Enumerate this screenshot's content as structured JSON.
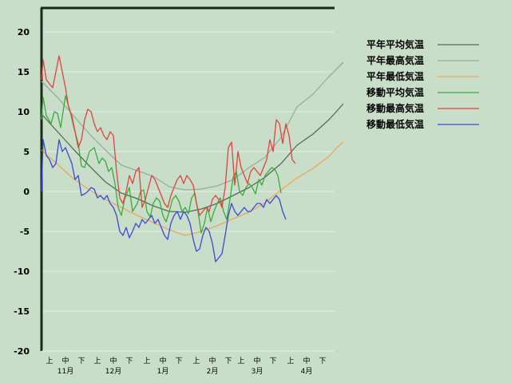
{
  "chart_data": {
    "type": "line",
    "title": "",
    "xlabel": "",
    "ylabel": "",
    "ylim": [
      -20,
      23
    ],
    "yticks": [
      20,
      15,
      10,
      5,
      0,
      -5,
      -10,
      -15,
      -20
    ],
    "x_sub_ticks": [
      "上",
      "中",
      "下"
    ],
    "months": [
      "11月",
      "12月",
      "1月",
      "2月",
      "3月",
      "4月"
    ],
    "grid": true,
    "legend_position": "top-right",
    "x_unit": "day index from 11月上旬 start (0 = Nov 1)",
    "series": [
      {
        "name": "平年平均気温",
        "color": "#556b55",
        "points": [
          [
            0,
            9.7
          ],
          [
            10,
            7.5
          ],
          [
            20,
            5.3
          ],
          [
            30,
            3.2
          ],
          [
            40,
            1.2
          ],
          [
            50,
            -0.2
          ],
          [
            60,
            -0.9
          ],
          [
            70,
            -1.8
          ],
          [
            80,
            -2.5
          ],
          [
            90,
            -2.6
          ],
          [
            100,
            -2.2
          ],
          [
            110,
            -1.5
          ],
          [
            120,
            -0.5
          ],
          [
            130,
            0.5
          ],
          [
            140,
            1.8
          ],
          [
            150,
            3.5
          ],
          [
            160,
            5.8
          ],
          [
            170,
            7.2
          ],
          [
            180,
            9.0
          ],
          [
            185,
            10.1
          ],
          [
            189,
            11.0
          ]
        ]
      },
      {
        "name": "平年最高気温",
        "color": "#98ac98",
        "points": [
          [
            0,
            13.8
          ],
          [
            10,
            11.8
          ],
          [
            20,
            9.5
          ],
          [
            30,
            7.2
          ],
          [
            40,
            5.2
          ],
          [
            50,
            3.3
          ],
          [
            60,
            2.6
          ],
          [
            70,
            1.9
          ],
          [
            80,
            0.6
          ],
          [
            90,
            0.2
          ],
          [
            100,
            0.3
          ],
          [
            110,
            0.7
          ],
          [
            120,
            1.5
          ],
          [
            130,
            3.0
          ],
          [
            140,
            4.3
          ],
          [
            150,
            6.8
          ],
          [
            160,
            10.6
          ],
          [
            170,
            12.2
          ],
          [
            180,
            14.4
          ],
          [
            185,
            15.4
          ],
          [
            189,
            16.2
          ]
        ]
      },
      {
        "name": "平年最低気温",
        "color": "#e8a858",
        "points": [
          [
            0,
            5.2
          ],
          [
            10,
            3.4
          ],
          [
            20,
            1.6
          ],
          [
            30,
            0.2
          ],
          [
            40,
            -1.0
          ],
          [
            50,
            -2.0
          ],
          [
            60,
            -3.0
          ],
          [
            70,
            -3.9
          ],
          [
            80,
            -4.8
          ],
          [
            90,
            -5.5
          ],
          [
            100,
            -5.0
          ],
          [
            110,
            -4.3
          ],
          [
            120,
            -3.4
          ],
          [
            130,
            -2.6
          ],
          [
            140,
            -1.4
          ],
          [
            150,
            0.2
          ],
          [
            160,
            1.7
          ],
          [
            170,
            2.9
          ],
          [
            180,
            4.4
          ],
          [
            185,
            5.5
          ],
          [
            189,
            6.2
          ]
        ]
      },
      {
        "name": "移動平均気温",
        "color": "#3cab3c",
        "points": [
          [
            0,
            9.0
          ],
          [
            1,
            11.8
          ],
          [
            3,
            9.5
          ],
          [
            6,
            8.5
          ],
          [
            8,
            10.0
          ],
          [
            10,
            9.8
          ],
          [
            12,
            8.0
          ],
          [
            15,
            12.0
          ],
          [
            18,
            10.0
          ],
          [
            20,
            8.2
          ],
          [
            23,
            6.0
          ],
          [
            25,
            3.2
          ],
          [
            27,
            3.0
          ],
          [
            30,
            5.0
          ],
          [
            33,
            5.5
          ],
          [
            36,
            3.5
          ],
          [
            38,
            4.2
          ],
          [
            40,
            3.8
          ],
          [
            42,
            2.5
          ],
          [
            44,
            3.0
          ],
          [
            46,
            1.0
          ],
          [
            48,
            -2.0
          ],
          [
            50,
            -3.0
          ],
          [
            52,
            -1.0
          ],
          [
            55,
            0.5
          ],
          [
            57,
            -2.5
          ],
          [
            60,
            -1.5
          ],
          [
            62,
            0.0
          ],
          [
            64,
            0.2
          ],
          [
            66,
            -2.5
          ],
          [
            68,
            -3.2
          ],
          [
            70,
            -1.5
          ],
          [
            72,
            -0.8
          ],
          [
            74,
            -1.2
          ],
          [
            76,
            -3.0
          ],
          [
            78,
            -3.8
          ],
          [
            80,
            -2.5
          ],
          [
            82,
            -1.0
          ],
          [
            84,
            -0.5
          ],
          [
            86,
            -1.2
          ],
          [
            88,
            -2.5
          ],
          [
            90,
            -2.0
          ],
          [
            92,
            -2.8
          ],
          [
            94,
            -0.8
          ],
          [
            96,
            -0.2
          ],
          [
            98,
            -2.5
          ],
          [
            100,
            -5.2
          ],
          [
            102,
            -4.0
          ],
          [
            104,
            -2.0
          ],
          [
            106,
            -3.8
          ],
          [
            108,
            -2.5
          ],
          [
            110,
            -1.5
          ],
          [
            112,
            -0.8
          ],
          [
            114,
            -2.5
          ],
          [
            116,
            -3.5
          ],
          [
            118,
            -1.0
          ],
          [
            120,
            1.8
          ],
          [
            122,
            2.5
          ],
          [
            124,
            0.0
          ],
          [
            126,
            -0.5
          ],
          [
            128,
            0.5
          ],
          [
            130,
            1.0
          ],
          [
            132,
            0.5
          ],
          [
            134,
            -0.3
          ],
          [
            136,
            1.5
          ],
          [
            138,
            0.8
          ],
          [
            140,
            2.0
          ],
          [
            142,
            2.5
          ],
          [
            144,
            3.0
          ],
          [
            146,
            2.8
          ],
          [
            148,
            2.0
          ],
          [
            150,
            -0.2
          ]
        ]
      },
      {
        "name": "移動最高気温",
        "color": "#e84040",
        "points": [
          [
            0,
            14.0
          ],
          [
            1,
            16.5
          ],
          [
            3,
            14.0
          ],
          [
            5,
            13.5
          ],
          [
            7,
            13.0
          ],
          [
            9,
            15.0
          ],
          [
            11,
            17.0
          ],
          [
            13,
            15.0
          ],
          [
            15,
            13.0
          ],
          [
            17,
            10.5
          ],
          [
            19,
            9.5
          ],
          [
            21,
            7.5
          ],
          [
            23,
            5.5
          ],
          [
            25,
            6.5
          ],
          [
            27,
            9.0
          ],
          [
            29,
            10.3
          ],
          [
            31,
            10.0
          ],
          [
            33,
            8.5
          ],
          [
            35,
            7.5
          ],
          [
            37,
            8.0
          ],
          [
            39,
            7.0
          ],
          [
            41,
            6.5
          ],
          [
            43,
            7.5
          ],
          [
            45,
            7.0
          ],
          [
            47,
            2.5
          ],
          [
            49,
            -0.8
          ],
          [
            51,
            -1.5
          ],
          [
            53,
            0.0
          ],
          [
            55,
            2.0
          ],
          [
            57,
            1.0
          ],
          [
            59,
            2.5
          ],
          [
            61,
            3.0
          ],
          [
            63,
            -2.0
          ],
          [
            65,
            -1.0
          ],
          [
            67,
            0.5
          ],
          [
            69,
            2.0
          ],
          [
            71,
            1.5
          ],
          [
            73,
            0.5
          ],
          [
            75,
            -0.5
          ],
          [
            77,
            -1.5
          ],
          [
            79,
            -2.0
          ],
          [
            81,
            -0.5
          ],
          [
            83,
            0.5
          ],
          [
            85,
            1.5
          ],
          [
            87,
            2.0
          ],
          [
            89,
            1.0
          ],
          [
            91,
            2.0
          ],
          [
            93,
            1.5
          ],
          [
            95,
            0.8
          ],
          [
            97,
            -1.5
          ],
          [
            99,
            -3.0
          ],
          [
            101,
            -2.5
          ],
          [
            103,
            -2.0
          ],
          [
            105,
            -2.5
          ],
          [
            107,
            -1.0
          ],
          [
            109,
            -0.5
          ],
          [
            111,
            -1.0
          ],
          [
            113,
            -2.0
          ],
          [
            115,
            0.5
          ],
          [
            117,
            5.5
          ],
          [
            119,
            6.2
          ],
          [
            121,
            0.8
          ],
          [
            123,
            5.0
          ],
          [
            125,
            3.0
          ],
          [
            127,
            2.0
          ],
          [
            129,
            1.0
          ],
          [
            131,
            2.5
          ],
          [
            133,
            3.0
          ],
          [
            135,
            2.5
          ],
          [
            137,
            2.0
          ],
          [
            139,
            3.0
          ],
          [
            141,
            4.0
          ],
          [
            143,
            6.5
          ],
          [
            145,
            5.0
          ],
          [
            147,
            9.0
          ],
          [
            149,
            8.5
          ],
          [
            151,
            6.0
          ],
          [
            153,
            8.5
          ],
          [
            155,
            7.0
          ],
          [
            157,
            4.0
          ],
          [
            159,
            3.5
          ]
        ]
      },
      {
        "name": "移動最低気温",
        "color": "#3a48e0",
        "points": [
          [
            0,
            0.0
          ],
          [
            1,
            6.5
          ],
          [
            3,
            4.5
          ],
          [
            5,
            4.0
          ],
          [
            7,
            3.0
          ],
          [
            9,
            3.5
          ],
          [
            11,
            6.5
          ],
          [
            13,
            5.0
          ],
          [
            15,
            5.5
          ],
          [
            17,
            4.5
          ],
          [
            19,
            3.5
          ],
          [
            21,
            1.5
          ],
          [
            23,
            2.0
          ],
          [
            25,
            -0.5
          ],
          [
            27,
            -0.3
          ],
          [
            29,
            0.0
          ],
          [
            31,
            0.5
          ],
          [
            33,
            0.3
          ],
          [
            35,
            -0.8
          ],
          [
            37,
            -0.5
          ],
          [
            39,
            -1.0
          ],
          [
            41,
            -0.5
          ],
          [
            43,
            -1.5
          ],
          [
            45,
            -2.0
          ],
          [
            47,
            -3.0
          ],
          [
            49,
            -5.0
          ],
          [
            51,
            -5.5
          ],
          [
            53,
            -4.5
          ],
          [
            55,
            -5.8
          ],
          [
            57,
            -5.0
          ],
          [
            59,
            -4.0
          ],
          [
            61,
            -4.5
          ],
          [
            63,
            -3.5
          ],
          [
            65,
            -4.0
          ],
          [
            67,
            -3.5
          ],
          [
            69,
            -3.0
          ],
          [
            71,
            -4.0
          ],
          [
            73,
            -3.5
          ],
          [
            75,
            -4.5
          ],
          [
            77,
            -5.5
          ],
          [
            79,
            -6.0
          ],
          [
            81,
            -4.0
          ],
          [
            83,
            -3.0
          ],
          [
            85,
            -2.5
          ],
          [
            87,
            -3.5
          ],
          [
            89,
            -2.5
          ],
          [
            91,
            -3.0
          ],
          [
            93,
            -4.0
          ],
          [
            95,
            -6.0
          ],
          [
            97,
            -7.5
          ],
          [
            99,
            -7.2
          ],
          [
            101,
            -5.5
          ],
          [
            103,
            -4.5
          ],
          [
            105,
            -5.0
          ],
          [
            107,
            -6.5
          ],
          [
            109,
            -8.8
          ],
          [
            111,
            -8.3
          ],
          [
            113,
            -7.8
          ],
          [
            115,
            -5.5
          ],
          [
            117,
            -3.0
          ],
          [
            119,
            -1.5
          ],
          [
            121,
            -2.5
          ],
          [
            123,
            -3.0
          ],
          [
            125,
            -2.5
          ],
          [
            127,
            -2.0
          ],
          [
            129,
            -2.5
          ],
          [
            131,
            -2.5
          ],
          [
            133,
            -2.0
          ],
          [
            135,
            -1.5
          ],
          [
            137,
            -1.5
          ],
          [
            139,
            -2.0
          ],
          [
            141,
            -1.0
          ],
          [
            143,
            -1.5
          ],
          [
            145,
            -1.0
          ],
          [
            147,
            -0.5
          ],
          [
            149,
            -1.0
          ],
          [
            151,
            -2.5
          ],
          [
            153,
            -3.5
          ]
        ]
      }
    ]
  }
}
